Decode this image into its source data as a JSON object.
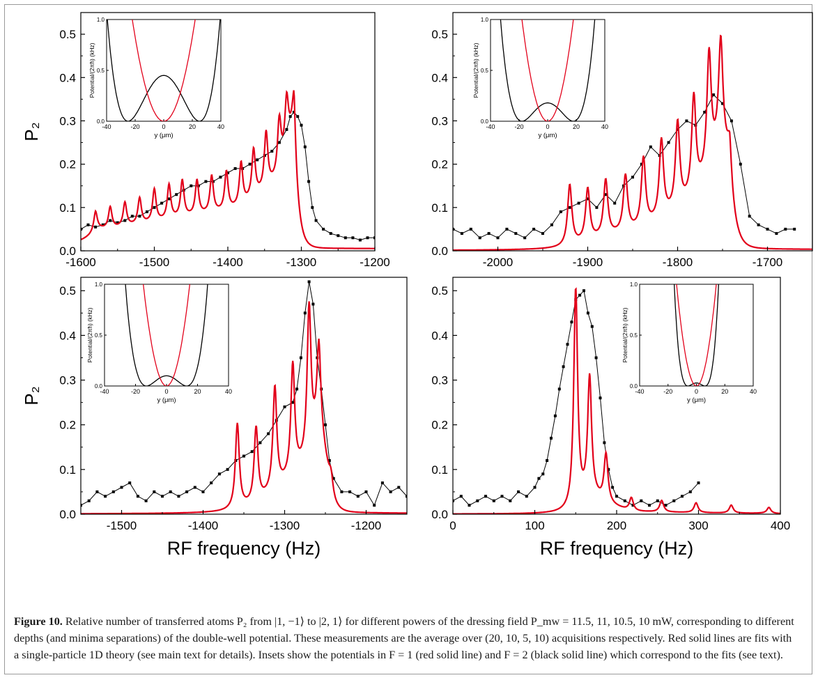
{
  "figure": {
    "label": "Figure 10.",
    "caption": "Relative number of transferred atoms P₂ from |1, −1⟩ to |2, 1⟩ for different powers of the dressing field P_mw = 11.5, 11, 10.5, 10 mW, corresponding to different depths (and minima separations) of the double-well potential. These measurements are the average over (20, 10, 5, 10) acquisitions respectively. Red solid lines are fits with a single-particle 1D theory (see main text for details). Insets show the potentials in F = 1 (red solid line) and F = 2 (black solid line) which correspond to the fits (see text)."
  },
  "colors": {
    "data": "#000000",
    "fit": "#e2001a"
  },
  "chart_data": [
    {
      "type": "line",
      "panel": "top-left",
      "xlabel": "",
      "ylabel": "P₂",
      "xlim": [
        -1600,
        -1200
      ],
      "ylim": [
        0,
        0.55
      ],
      "xticks": [
        -1600,
        -1500,
        -1400,
        -1300,
        -1200
      ],
      "yticks": [
        0.0,
        0.1,
        0.2,
        0.3,
        0.4,
        0.5
      ],
      "series": [
        {
          "style": "black line with square markers",
          "x": [
            -1600,
            -1590,
            -1580,
            -1570,
            -1560,
            -1550,
            -1540,
            -1530,
            -1520,
            -1510,
            -1500,
            -1490,
            -1480,
            -1470,
            -1460,
            -1450,
            -1440,
            -1430,
            -1420,
            -1410,
            -1400,
            -1390,
            -1380,
            -1370,
            -1360,
            -1350,
            -1340,
            -1330,
            -1320,
            -1315,
            -1310,
            -1305,
            -1300,
            -1295,
            -1290,
            -1285,
            -1280,
            -1270,
            -1260,
            -1250,
            -1240,
            -1230,
            -1220,
            -1210,
            -1200
          ],
          "y": [
            0.05,
            0.06,
            0.055,
            0.06,
            0.07,
            0.065,
            0.07,
            0.08,
            0.08,
            0.09,
            0.1,
            0.11,
            0.12,
            0.13,
            0.14,
            0.15,
            0.15,
            0.16,
            0.16,
            0.17,
            0.18,
            0.19,
            0.19,
            0.2,
            0.21,
            0.22,
            0.23,
            0.25,
            0.28,
            0.31,
            0.32,
            0.31,
            0.29,
            0.24,
            0.16,
            0.1,
            0.07,
            0.05,
            0.04,
            0.035,
            0.03,
            0.03,
            0.025,
            0.03,
            0.03
          ]
        },
        {
          "style": "red solid line",
          "peaks": [
            -1580,
            -1560,
            -1540,
            -1520,
            -1500,
            -1480,
            -1462,
            -1442,
            -1422,
            -1402,
            -1382,
            -1365,
            -1348,
            -1330,
            -1320,
            -1310
          ],
          "peak_heights": [
            0.09,
            0.1,
            0.11,
            0.12,
            0.14,
            0.15,
            0.16,
            0.16,
            0.17,
            0.18,
            0.2,
            0.23,
            0.27,
            0.3,
            0.35,
            0.36
          ],
          "min_levels": [
            0.05,
            0.05,
            0.055,
            0.06,
            0.065,
            0.07,
            0.075,
            0.08,
            0.085,
            0.09,
            0.1,
            0.12,
            0.14,
            0.17,
            0.24,
            0.3
          ],
          "tail_end": 0.005
        }
      ],
      "inset": {
        "position": "top-left",
        "xlabel": "y (μm)",
        "ylabel": "Potential/(2πħ) (kHz)",
        "xlim": [
          -40,
          40
        ],
        "ylim": [
          0,
          1.0
        ],
        "xticks": [
          -40,
          -20,
          0,
          20,
          40
        ],
        "yticks": [
          0.0,
          0.5,
          1.0
        ],
        "curves": [
          {
            "color": "black",
            "shape": "double-well",
            "barrier": 0.45,
            "minima_at": 25
          },
          {
            "color": "red",
            "shape": "single-well",
            "width": 22
          }
        ]
      }
    },
    {
      "type": "line",
      "panel": "top-right",
      "xlabel": "",
      "ylabel": "",
      "xlim": [
        -2050,
        -1650
      ],
      "ylim": [
        0,
        0.55
      ],
      "xticks": [
        -2000,
        -1900,
        -1800,
        -1700
      ],
      "yticks": [
        0.0,
        0.1,
        0.2,
        0.3,
        0.4,
        0.5
      ],
      "series": [
        {
          "style": "black line with square markers",
          "x": [
            -2050,
            -2040,
            -2030,
            -2020,
            -2010,
            -2000,
            -1990,
            -1980,
            -1970,
            -1960,
            -1950,
            -1940,
            -1930,
            -1920,
            -1910,
            -1900,
            -1890,
            -1880,
            -1870,
            -1860,
            -1850,
            -1840,
            -1830,
            -1820,
            -1810,
            -1800,
            -1790,
            -1780,
            -1770,
            -1760,
            -1750,
            -1740,
            -1730,
            -1720,
            -1710,
            -1700,
            -1690,
            -1680,
            -1670
          ],
          "y": [
            0.05,
            0.04,
            0.05,
            0.03,
            0.04,
            0.03,
            0.05,
            0.04,
            0.03,
            0.05,
            0.04,
            0.06,
            0.09,
            0.1,
            0.11,
            0.12,
            0.1,
            0.13,
            0.11,
            0.15,
            0.17,
            0.2,
            0.24,
            0.22,
            0.25,
            0.28,
            0.3,
            0.29,
            0.32,
            0.36,
            0.34,
            0.3,
            0.2,
            0.08,
            0.06,
            0.05,
            0.04,
            0.05,
            0.05
          ]
        },
        {
          "style": "red solid line",
          "peaks": [
            -1920,
            -1900,
            -1880,
            -1858,
            -1838,
            -1818,
            -1800,
            -1782,
            -1765,
            -1752,
            -1742
          ],
          "peak_heights": [
            0.15,
            0.14,
            0.16,
            0.17,
            0.21,
            0.25,
            0.29,
            0.35,
            0.45,
            0.48,
            0.25
          ],
          "min_levels": [
            0.01,
            0.02,
            0.03,
            0.04,
            0.05,
            0.07,
            0.09,
            0.12,
            0.18,
            0.25,
            0.2
          ],
          "tail_end": 0.003
        }
      ],
      "inset": {
        "position": "top-left",
        "xlabel": "y (μm)",
        "ylabel": "Potential/(2πħ) (kHz)",
        "xlim": [
          -40,
          40
        ],
        "ylim": [
          0,
          1.0
        ],
        "xticks": [
          -40,
          -20,
          0,
          20,
          40
        ],
        "yticks": [
          0.0,
          0.5,
          1.0
        ],
        "curves": [
          {
            "color": "black",
            "shape": "double-well",
            "barrier": 0.18,
            "minima_at": 18
          },
          {
            "color": "red",
            "shape": "single-well",
            "width": 18
          }
        ]
      }
    },
    {
      "type": "line",
      "panel": "bottom-left",
      "xlabel": "RF frequency (Hz)",
      "ylabel": "P₂",
      "xlim": [
        -1550,
        -1150
      ],
      "ylim": [
        0,
        0.53
      ],
      "xticks": [
        -1500,
        -1400,
        -1300,
        -1200
      ],
      "yticks": [
        0.0,
        0.1,
        0.2,
        0.3,
        0.4,
        0.5
      ],
      "series": [
        {
          "style": "black line with square markers",
          "x": [
            -1550,
            -1540,
            -1530,
            -1520,
            -1510,
            -1500,
            -1490,
            -1480,
            -1470,
            -1460,
            -1450,
            -1440,
            -1430,
            -1420,
            -1410,
            -1400,
            -1390,
            -1380,
            -1370,
            -1360,
            -1350,
            -1340,
            -1330,
            -1320,
            -1310,
            -1300,
            -1290,
            -1285,
            -1280,
            -1275,
            -1270,
            -1265,
            -1260,
            -1255,
            -1250,
            -1245,
            -1240,
            -1230,
            -1220,
            -1210,
            -1200,
            -1190,
            -1180,
            -1170,
            -1160,
            -1150
          ],
          "y": [
            0.02,
            0.03,
            0.05,
            0.04,
            0.05,
            0.06,
            0.07,
            0.04,
            0.03,
            0.05,
            0.04,
            0.05,
            0.04,
            0.05,
            0.06,
            0.05,
            0.07,
            0.09,
            0.1,
            0.12,
            0.13,
            0.14,
            0.16,
            0.18,
            0.21,
            0.24,
            0.25,
            0.28,
            0.35,
            0.45,
            0.52,
            0.47,
            0.35,
            0.28,
            0.2,
            0.12,
            0.08,
            0.05,
            0.05,
            0.04,
            0.05,
            0.02,
            0.07,
            0.05,
            0.06,
            0.04
          ]
        },
        {
          "style": "red solid line",
          "peaks": [
            -1358,
            -1335,
            -1312,
            -1290,
            -1270,
            -1258,
            -1243
          ],
          "peak_heights": [
            0.2,
            0.19,
            0.28,
            0.33,
            0.46,
            0.37,
            0.09
          ],
          "min_levels": [
            0.01,
            0.02,
            0.05,
            0.08,
            0.12,
            0.2,
            0.05
          ],
          "tail_end": 0.002
        }
      ],
      "inset": {
        "position": "top-left",
        "xlabel": "y (μm)",
        "ylabel": "Potential/(2πħ) (kHz)",
        "xlim": [
          -40,
          40
        ],
        "ylim": [
          0,
          1.0
        ],
        "xticks": [
          -40,
          -20,
          0,
          20,
          40
        ],
        "yticks": [
          0.0,
          0.5,
          1.0
        ],
        "curves": [
          {
            "color": "black",
            "shape": "double-well",
            "barrier": 0.1,
            "minima_at": 13
          },
          {
            "color": "red",
            "shape": "single-well",
            "width": 15
          }
        ]
      }
    },
    {
      "type": "line",
      "panel": "bottom-right",
      "xlabel": "RF frequency (Hz)",
      "ylabel": "",
      "xlim": [
        0,
        400
      ],
      "ylim": [
        0,
        0.53
      ],
      "xticks": [
        0,
        100,
        200,
        300,
        400
      ],
      "yticks": [
        0.0,
        0.1,
        0.2,
        0.3,
        0.4,
        0.5
      ],
      "series": [
        {
          "style": "black line with square markers",
          "x": [
            0,
            10,
            20,
            30,
            40,
            50,
            60,
            70,
            80,
            90,
            100,
            105,
            110,
            115,
            120,
            125,
            130,
            135,
            140,
            145,
            150,
            155,
            160,
            165,
            170,
            175,
            180,
            185,
            190,
            195,
            200,
            210,
            220,
            230,
            240,
            250,
            260,
            270,
            280,
            290,
            300
          ],
          "y": [
            0.03,
            0.04,
            0.02,
            0.03,
            0.04,
            0.03,
            0.04,
            0.03,
            0.05,
            0.04,
            0.06,
            0.08,
            0.09,
            0.12,
            0.17,
            0.22,
            0.28,
            0.33,
            0.38,
            0.43,
            0.48,
            0.49,
            0.5,
            0.45,
            0.42,
            0.35,
            0.26,
            0.16,
            0.1,
            0.06,
            0.04,
            0.03,
            0.02,
            0.03,
            0.02,
            0.03,
            0.02,
            0.03,
            0.04,
            0.05,
            0.07
          ]
        },
        {
          "style": "red solid line",
          "peaks": [
            150,
            167,
            187,
            218,
            255,
            297,
            340,
            386
          ],
          "peak_heights": [
            0.5,
            0.3,
            0.13,
            0.035,
            0.03,
            0.025,
            0.02,
            0.015
          ],
          "min_levels": [
            0.003,
            0.04,
            0.02,
            0.005,
            0.004,
            0.003,
            0.002,
            0.002
          ],
          "tail_end": 0.001
        }
      ],
      "inset": {
        "position": "top-right",
        "xlabel": "y (μm)",
        "ylabel": "Potential/(2πħ) (kHz)",
        "xlim": [
          -40,
          40
        ],
        "ylim": [
          0,
          1.0
        ],
        "xticks": [
          -40,
          -20,
          0,
          20,
          40
        ],
        "yticks": [
          0.0,
          0.5,
          1.0
        ],
        "curves": [
          {
            "color": "black",
            "shape": "double-well",
            "barrier": 0.03,
            "minima_at": 6
          },
          {
            "color": "red",
            "shape": "single-well",
            "width": 14
          }
        ]
      }
    }
  ]
}
